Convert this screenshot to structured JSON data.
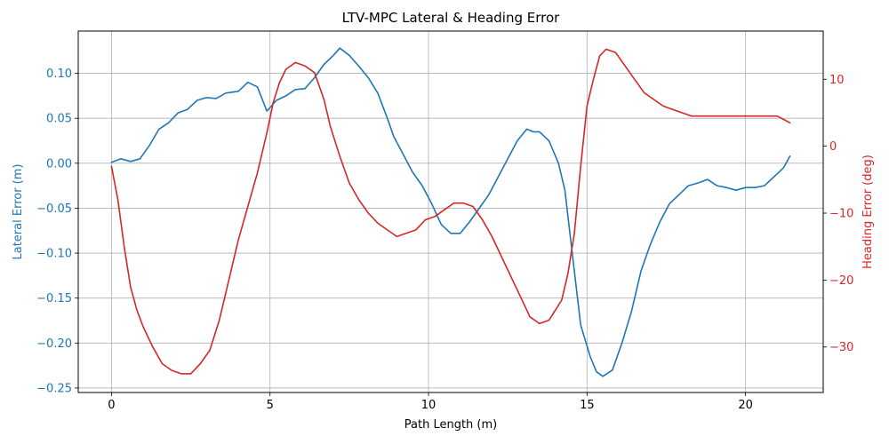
{
  "chart_data": {
    "type": "line",
    "title": "LTV-MPC Lateral & Heading Error",
    "xlabel": "Path Length (m)",
    "ylabel_left": "Lateral Error (m)",
    "ylabel_right": "Heading Error (deg)",
    "xlim": [
      -1.05,
      22.45
    ],
    "ylim_left": [
      -0.255,
      0.147
    ],
    "ylim_right": [
      -36.8,
      17.2
    ],
    "xticks": [
      0,
      5,
      10,
      15,
      20
    ],
    "yticks_left": [
      -0.25,
      -0.2,
      -0.15,
      -0.1,
      -0.05,
      0.0,
      0.05,
      0.1
    ],
    "yticks_left_labels": [
      "−0.25",
      "−0.20",
      "−0.15",
      "−0.10",
      "−0.05",
      "0.00",
      "0.05",
      "0.10"
    ],
    "yticks_right": [
      -30,
      -20,
      -10,
      0,
      10
    ],
    "yticks_right_labels": [
      "−30",
      "−20",
      "−10",
      "0",
      "10"
    ],
    "grid": true,
    "colors": {
      "left_axis": "#1f77b4",
      "right_axis": "#d62728"
    },
    "series": [
      {
        "axis": "left",
        "x": [
          0.0,
          0.3,
          0.6,
          0.9,
          1.2,
          1.5,
          1.8,
          2.1,
          2.4,
          2.7,
          3.0,
          3.3,
          3.6,
          4.0,
          4.3,
          4.6,
          4.9,
          5.2,
          5.5,
          5.8,
          6.1,
          6.4,
          6.7,
          7.0,
          7.2,
          7.5,
          7.8,
          8.1,
          8.4,
          8.7,
          8.9,
          9.2,
          9.5,
          9.8,
          10.1,
          10.4,
          10.7,
          11.0,
          11.3,
          11.6,
          11.9,
          12.2,
          12.5,
          12.8,
          13.1,
          13.3,
          13.5,
          13.8,
          14.1,
          14.3,
          14.5,
          14.8,
          15.1,
          15.3,
          15.5,
          15.8,
          16.1,
          16.4,
          16.7,
          17.0,
          17.3,
          17.6,
          17.9,
          18.2,
          18.5,
          18.8,
          19.1,
          19.4,
          19.7,
          20.0,
          20.3,
          20.6,
          20.9,
          21.2,
          21.4
        ],
        "y": [
          0.001,
          0.005,
          0.002,
          0.005,
          0.02,
          0.038,
          0.045,
          0.056,
          0.06,
          0.07,
          0.073,
          0.072,
          0.078,
          0.08,
          0.09,
          0.085,
          0.058,
          0.07,
          0.075,
          0.082,
          0.083,
          0.095,
          0.11,
          0.12,
          0.128,
          0.12,
          0.108,
          0.095,
          0.078,
          0.05,
          0.03,
          0.01,
          -0.01,
          -0.025,
          -0.045,
          -0.068,
          -0.078,
          -0.078,
          -0.065,
          -0.05,
          -0.035,
          -0.015,
          0.005,
          0.025,
          0.038,
          0.035,
          0.035,
          0.025,
          0.0,
          -0.03,
          -0.09,
          -0.18,
          -0.215,
          -0.232,
          -0.237,
          -0.23,
          -0.2,
          -0.165,
          -0.12,
          -0.09,
          -0.065,
          -0.045,
          -0.035,
          -0.025,
          -0.022,
          -0.018,
          -0.025,
          -0.027,
          -0.03,
          -0.027,
          -0.027,
          -0.025,
          -0.015,
          -0.005,
          0.008
        ]
      },
      {
        "axis": "right",
        "x": [
          0.0,
          0.2,
          0.4,
          0.6,
          0.8,
          1.0,
          1.3,
          1.6,
          1.9,
          2.2,
          2.5,
          2.8,
          3.1,
          3.4,
          3.7,
          4.0,
          4.3,
          4.6,
          4.9,
          5.1,
          5.3,
          5.5,
          5.8,
          6.1,
          6.4,
          6.7,
          6.9,
          7.2,
          7.5,
          7.8,
          8.1,
          8.4,
          8.7,
          9.0,
          9.3,
          9.6,
          9.9,
          10.2,
          10.5,
          10.8,
          11.1,
          11.4,
          11.7,
          12.0,
          12.3,
          12.6,
          12.9,
          13.2,
          13.5,
          13.8,
          14.0,
          14.2,
          14.4,
          14.6,
          14.8,
          15.0,
          15.2,
          15.4,
          15.6,
          15.9,
          16.2,
          16.5,
          16.8,
          17.1,
          17.4,
          17.7,
          18.0,
          18.3,
          18.6,
          18.9,
          19.2,
          19.5,
          19.8,
          20.1,
          20.4,
          20.7,
          21.0,
          21.2,
          21.4
        ],
        "y": [
          -3.0,
          -8.0,
          -15.0,
          -21.0,
          -24.5,
          -27.0,
          -30.0,
          -32.5,
          -33.5,
          -34.0,
          -34.0,
          -32.5,
          -30.5,
          -26.0,
          -20.0,
          -14.0,
          -9.0,
          -4.0,
          2.0,
          6.5,
          9.5,
          11.5,
          12.5,
          12.0,
          11.0,
          7.0,
          3.0,
          -1.5,
          -5.5,
          -8.0,
          -10.0,
          -11.5,
          -12.5,
          -13.5,
          -13.0,
          -12.5,
          -11.0,
          -10.5,
          -9.5,
          -8.5,
          -8.5,
          -9.0,
          -11.0,
          -13.5,
          -16.5,
          -19.5,
          -22.5,
          -25.5,
          -26.5,
          -26.0,
          -24.5,
          -23.0,
          -19.0,
          -13.0,
          -3.0,
          6.0,
          10.0,
          13.5,
          14.5,
          14.0,
          12.0,
          10.0,
          8.0,
          7.0,
          6.0,
          5.5,
          5.0,
          4.5,
          4.5,
          4.5,
          4.5,
          4.5,
          4.5,
          4.5,
          4.5,
          4.5,
          4.5,
          4.0,
          3.5
        ]
      }
    ]
  }
}
